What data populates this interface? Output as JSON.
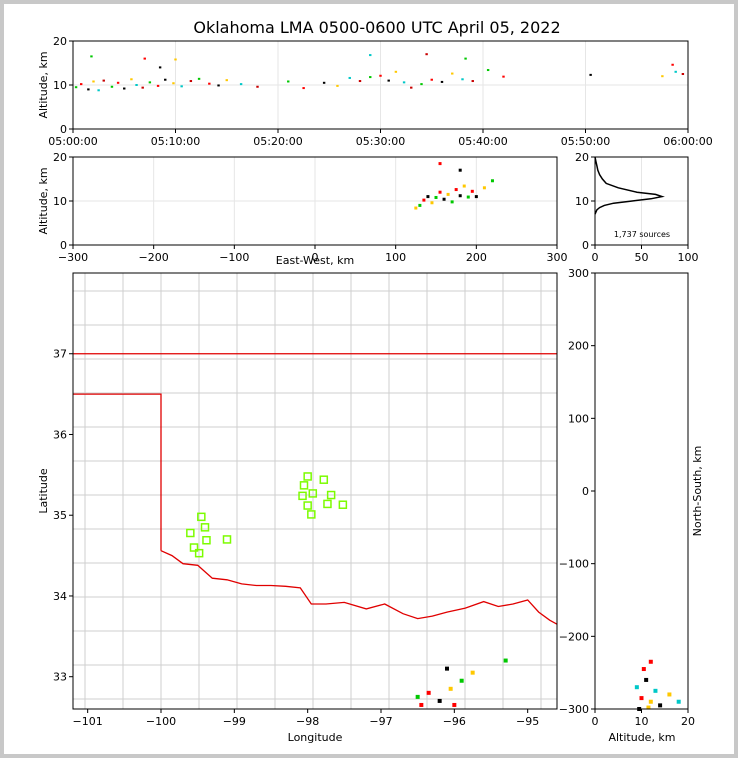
{
  "title": "Oklahoma LMA 0500-0600 UTC April 05, 2022",
  "colors": {
    "state_border": "#e00000",
    "county": "#c8c8c8",
    "station": "#7cfc00",
    "background": "#ffffff"
  },
  "panels": {
    "time_height": {
      "ylabel": "Altitude, km",
      "yticks": [
        "0",
        "10",
        "20"
      ],
      "xticks": [
        "05:00:00",
        "05:10:00",
        "05:20:00",
        "05:30:00",
        "05:40:00",
        "05:50:00",
        "06:00:00"
      ]
    },
    "ew_height": {
      "ylabel": "Altitude, km",
      "xlabel": "East-West, km",
      "yticks": [
        "0",
        "10",
        "20"
      ],
      "xticks": [
        "−300",
        "−200",
        "−100",
        "0",
        "100",
        "200",
        "300"
      ]
    },
    "histogram": {
      "note": "1,737 sources",
      "yticks": [
        "0",
        "10",
        "20"
      ],
      "xticks": [
        "0",
        "50",
        "100"
      ]
    },
    "plan": {
      "xlabel": "Longitude",
      "ylabel": "Latitude",
      "xticks": [
        "−101",
        "−100",
        "−99",
        "−98",
        "−97",
        "−96",
        "−95"
      ],
      "yticks": [
        "33",
        "34",
        "35",
        "36",
        "37"
      ]
    },
    "ns_height": {
      "xlabel": "Altitude, km",
      "ylabel": "North-South, km",
      "xticks": [
        "0",
        "10",
        "20"
      ],
      "yticks": [
        "−300",
        "−200",
        "−100",
        "0",
        "100",
        "200",
        "300"
      ]
    }
  },
  "chart_data": [
    {
      "type": "scatter",
      "panel": "time_height",
      "x_range": [
        "05:00:00",
        "06:00:00"
      ],
      "ylim": [
        0,
        20
      ],
      "grid": true,
      "points": [
        {
          "t": 0.3,
          "alt": 9.5
        },
        {
          "t": 0.8,
          "alt": 10.2
        },
        {
          "t": 1.5,
          "alt": 9.0
        },
        {
          "t": 2.0,
          "alt": 10.8
        },
        {
          "t": 2.5,
          "alt": 8.8
        },
        {
          "t": 3.0,
          "alt": 11.0
        },
        {
          "t": 3.8,
          "alt": 9.6
        },
        {
          "t": 4.4,
          "alt": 10.5
        },
        {
          "t": 5.0,
          "alt": 9.2
        },
        {
          "t": 5.7,
          "alt": 11.3
        },
        {
          "t": 6.2,
          "alt": 10.0
        },
        {
          "t": 6.8,
          "alt": 9.4
        },
        {
          "t": 7.5,
          "alt": 10.6
        },
        {
          "t": 8.3,
          "alt": 9.8
        },
        {
          "t": 9.0,
          "alt": 11.2
        },
        {
          "t": 9.8,
          "alt": 10.4
        },
        {
          "t": 10.6,
          "alt": 9.7
        },
        {
          "t": 11.5,
          "alt": 10.9
        },
        {
          "t": 12.3,
          "alt": 11.4
        },
        {
          "t": 13.3,
          "alt": 10.3
        },
        {
          "t": 14.2,
          "alt": 9.9
        },
        {
          "t": 15.0,
          "alt": 11.1
        },
        {
          "t": 16.4,
          "alt": 10.2
        },
        {
          "t": 18.0,
          "alt": 9.6
        },
        {
          "t": 21.0,
          "alt": 10.8
        },
        {
          "t": 22.5,
          "alt": 9.3
        },
        {
          "t": 24.5,
          "alt": 10.5
        },
        {
          "t": 25.8,
          "alt": 9.8
        },
        {
          "t": 27.0,
          "alt": 11.6
        },
        {
          "t": 28.0,
          "alt": 10.9
        },
        {
          "t": 29.0,
          "alt": 11.8
        },
        {
          "t": 30.0,
          "alt": 12.1
        },
        {
          "t": 30.8,
          "alt": 11.0
        },
        {
          "t": 31.5,
          "alt": 13.0
        },
        {
          "t": 32.3,
          "alt": 10.6
        },
        {
          "t": 33.0,
          "alt": 9.4
        },
        {
          "t": 34.0,
          "alt": 10.2
        },
        {
          "t": 35.0,
          "alt": 11.2
        },
        {
          "t": 36.0,
          "alt": 10.7
        },
        {
          "t": 37.0,
          "alt": 12.6
        },
        {
          "t": 38.0,
          "alt": 11.3
        },
        {
          "t": 39.0,
          "alt": 10.9
        },
        {
          "t": 40.5,
          "alt": 13.4
        },
        {
          "t": 42.0,
          "alt": 11.9
        },
        {
          "t": 50.5,
          "alt": 12.3
        },
        {
          "t": 57.5,
          "alt": 12.0
        },
        {
          "t": 58.8,
          "alt": 13.0
        },
        {
          "t": 59.5,
          "alt": 12.5
        },
        {
          "t": 1.8,
          "alt": 16.5
        },
        {
          "t": 7.0,
          "alt": 16.0
        },
        {
          "t": 8.5,
          "alt": 14.0
        },
        {
          "t": 10.0,
          "alt": 15.8
        },
        {
          "t": 29.0,
          "alt": 16.8
        },
        {
          "t": 34.5,
          "alt": 17.0
        },
        {
          "t": 38.3,
          "alt": 16.0
        },
        {
          "t": 58.5,
          "alt": 14.6
        }
      ]
    },
    {
      "type": "scatter",
      "panel": "ew_height",
      "xlim": [
        -300,
        300
      ],
      "ylim": [
        0,
        20
      ],
      "grid": true,
      "points": [
        {
          "x": 130,
          "alt": 9.0
        },
        {
          "x": 135,
          "alt": 10.2
        },
        {
          "x": 140,
          "alt": 11.0
        },
        {
          "x": 145,
          "alt": 9.6
        },
        {
          "x": 150,
          "alt": 10.8
        },
        {
          "x": 155,
          "alt": 12.0
        },
        {
          "x": 160,
          "alt": 10.4
        },
        {
          "x": 165,
          "alt": 11.5
        },
        {
          "x": 170,
          "alt": 9.8
        },
        {
          "x": 175,
          "alt": 12.6
        },
        {
          "x": 180,
          "alt": 11.2
        },
        {
          "x": 185,
          "alt": 13.4
        },
        {
          "x": 190,
          "alt": 10.9
        },
        {
          "x": 195,
          "alt": 12.2
        },
        {
          "x": 200,
          "alt": 11.0
        },
        {
          "x": 210,
          "alt": 13.0
        },
        {
          "x": 220,
          "alt": 14.6
        },
        {
          "x": 155,
          "alt": 18.5
        },
        {
          "x": 180,
          "alt": 17.0
        },
        {
          "x": 125,
          "alt": 8.4
        }
      ]
    },
    {
      "type": "line",
      "panel": "histogram",
      "note": "1,737 sources",
      "xlim": [
        0,
        100
      ],
      "ylim": [
        0,
        20
      ],
      "x": [
        0,
        2,
        5,
        10,
        20,
        40,
        60,
        72,
        65,
        45,
        25,
        12,
        8,
        5,
        3,
        2,
        1,
        0
      ],
      "y": [
        7,
        8,
        8.5,
        9,
        9.5,
        10,
        10.5,
        11,
        11.5,
        12,
        13,
        14,
        15,
        16,
        17,
        18,
        19,
        20
      ]
    },
    {
      "type": "scatter",
      "panel": "plan",
      "xlim": [
        -101.2,
        -94.6
      ],
      "ylim": [
        32.6,
        38.0
      ],
      "stations": [
        {
          "lon": -99.6,
          "lat": 34.78
        },
        {
          "lon": -99.45,
          "lat": 34.98
        },
        {
          "lon": -99.4,
          "lat": 34.85
        },
        {
          "lon": -99.38,
          "lat": 34.69
        },
        {
          "lon": -99.55,
          "lat": 34.6
        },
        {
          "lon": -99.48,
          "lat": 34.53
        },
        {
          "lon": -99.1,
          "lat": 34.7
        },
        {
          "lon": -98.0,
          "lat": 35.48
        },
        {
          "lon": -98.05,
          "lat": 35.37
        },
        {
          "lon": -98.07,
          "lat": 35.24
        },
        {
          "lon": -97.93,
          "lat": 35.27
        },
        {
          "lon": -98.0,
          "lat": 35.12
        },
        {
          "lon": -97.95,
          "lat": 35.01
        },
        {
          "lon": -97.78,
          "lat": 35.44
        },
        {
          "lon": -97.68,
          "lat": 35.25
        },
        {
          "lon": -97.73,
          "lat": 35.14
        },
        {
          "lon": -97.52,
          "lat": 35.13
        }
      ],
      "sources": [
        {
          "lon": -96.5,
          "lat": 32.75
        },
        {
          "lon": -96.35,
          "lat": 32.8
        },
        {
          "lon": -96.2,
          "lat": 32.7
        },
        {
          "lon": -96.05,
          "lat": 32.85
        },
        {
          "lon": -95.9,
          "lat": 32.95
        },
        {
          "lon": -96.45,
          "lat": 32.65
        },
        {
          "lon": -96.1,
          "lat": 33.1
        },
        {
          "lon": -95.75,
          "lat": 33.05
        },
        {
          "lon": -95.3,
          "lat": 33.2
        },
        {
          "lon": -96.0,
          "lat": 32.65
        }
      ]
    },
    {
      "type": "scatter",
      "panel": "ns_height",
      "xlim": [
        0,
        20
      ],
      "ylim": [
        -300,
        300
      ],
      "points": [
        {
          "alt": 9,
          "y": -270
        },
        {
          "alt": 10,
          "y": -285
        },
        {
          "alt": 11,
          "y": -260
        },
        {
          "alt": 12,
          "y": -290
        },
        {
          "alt": 13,
          "y": -275
        },
        {
          "alt": 10.5,
          "y": -245
        },
        {
          "alt": 14,
          "y": -295
        },
        {
          "alt": 16,
          "y": -280
        },
        {
          "alt": 18,
          "y": -290
        },
        {
          "alt": 12,
          "y": -235
        },
        {
          "alt": 9.5,
          "y": -300
        },
        {
          "alt": 11.5,
          "y": -298
        }
      ]
    }
  ]
}
